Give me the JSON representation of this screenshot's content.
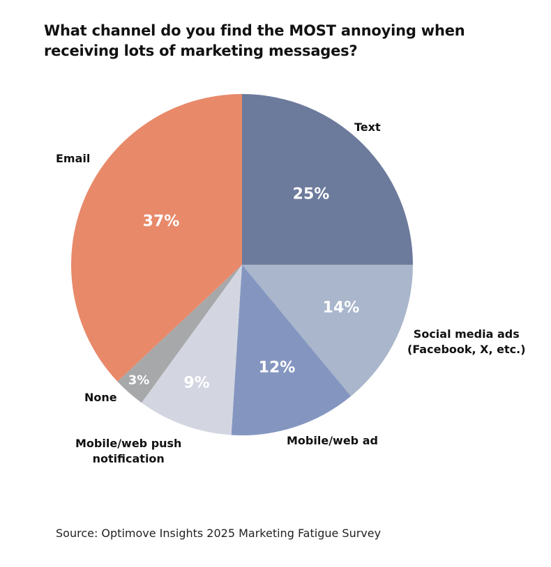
{
  "chart_data": {
    "type": "pie",
    "title": "What channel do you find the MOST annoying when receiving lots of marketing messages?",
    "start_angle": "12 o'clock, clockwise",
    "slices": [
      {
        "label": "Text",
        "value": 25,
        "value_label": "25%",
        "color": "#6c7a9c"
      },
      {
        "label": "Social media ads\n(Facebook, X, etc.)",
        "value": 14,
        "value_label": "14%",
        "color": "#a9b6cb"
      },
      {
        "label": "Mobile/web ad",
        "value": 12,
        "value_label": "12%",
        "color": "#8496c0"
      },
      {
        "label": "Mobile/web push\nnotification",
        "value": 9,
        "value_label": "9%",
        "color": "#d3d6e1"
      },
      {
        "label": "None",
        "value": 3,
        "value_label": "3%",
        "color": "#a7a8aa"
      },
      {
        "label": "Email",
        "value": 37,
        "value_label": "37%",
        "color": "#e8896a"
      }
    ]
  },
  "source": "Source: Optimove Insights 2025 Marketing Fatigue Survey"
}
